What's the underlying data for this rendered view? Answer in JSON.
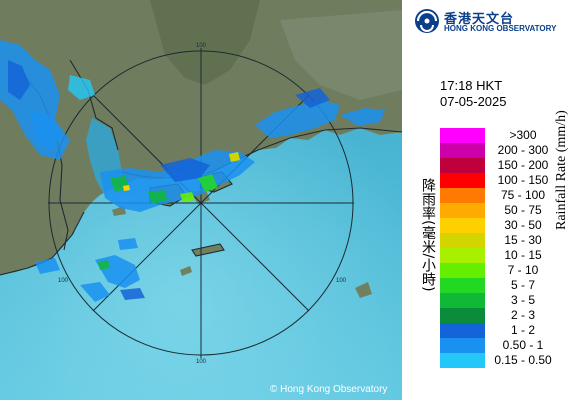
{
  "header": {
    "logo_zh": "香港天文台",
    "logo_en": "HONG KONG OBSERVATORY"
  },
  "timestamp": {
    "time": "17:18 HKT",
    "date": "07-05-2025"
  },
  "legend": {
    "title_en": "Rainfall Rate (mm/h)",
    "title_zh": "降雨率(毫米/小時)",
    "bins": [
      {
        "label": ">300",
        "color": "#ff00ff"
      },
      {
        "label": "200 - 300",
        "color": "#cc00aa"
      },
      {
        "label": "150 - 200",
        "color": "#c0003c"
      },
      {
        "label": "100 - 150",
        "color": "#ff0000"
      },
      {
        "label": "75 - 100",
        "color": "#ff7a00"
      },
      {
        "label": "50 - 75",
        "color": "#ffaa00"
      },
      {
        "label": "30 - 50",
        "color": "#ffd000"
      },
      {
        "label": "15 - 30",
        "color": "#d4d400"
      },
      {
        "label": "10 - 15",
        "color": "#a8f000"
      },
      {
        "label": "7 - 10",
        "color": "#66ee00"
      },
      {
        "label": "5 - 7",
        "color": "#22d822"
      },
      {
        "label": "3 - 5",
        "color": "#10b838"
      },
      {
        "label": "2 - 3",
        "color": "#0a8c3a"
      },
      {
        "label": "1 - 2",
        "color": "#1463d8"
      },
      {
        "label": "0.50 - 1",
        "color": "#1a90f0"
      },
      {
        "label": "0.15 - 0.50",
        "color": "#24c8f8"
      }
    ]
  },
  "map": {
    "range_ring_label": "100",
    "copyright": "© Hong Kong Observatory"
  }
}
